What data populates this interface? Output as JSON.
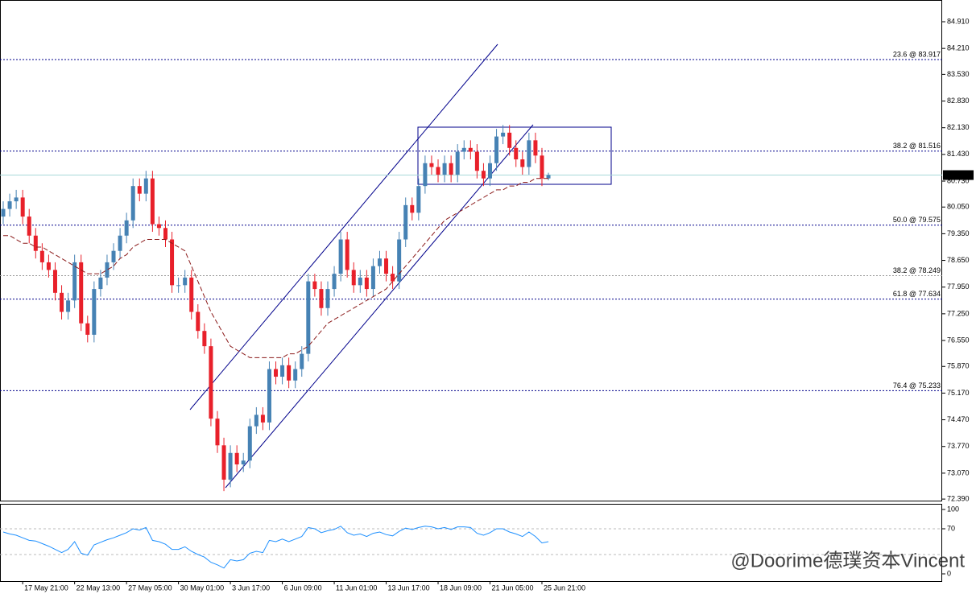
{
  "chart_data": [
    {
      "type": "candlestick",
      "categories": [
        null,
        null,
        null,
        "17 May 21:00",
        null,
        null,
        null,
        null,
        null,
        null,
        null,
        "22 May 13:00",
        null,
        null,
        null,
        null,
        null,
        null,
        null,
        "27 May 05:00",
        null,
        null,
        null,
        null,
        null,
        null,
        null,
        "30 May 01:00",
        null,
        null,
        null,
        null,
        null,
        null,
        null,
        "3 Jun 17:00",
        null,
        null,
        null,
        null,
        null,
        null,
        null,
        "6 Jun 09:00",
        null,
        null,
        null,
        null,
        null,
        null,
        null,
        "11 Jun 01:00",
        null,
        null,
        null,
        null,
        null,
        null,
        null,
        "13 Jun 17:00",
        null,
        null,
        null,
        null,
        null,
        null,
        null,
        "18 Jun 09:00",
        null,
        null,
        null,
        null,
        null,
        null,
        null,
        "21 Jun 05:00",
        null,
        null,
        null,
        null,
        null,
        null,
        null,
        "25 Jun 21:00",
        null
      ],
      "open": [
        79.8,
        80.0,
        80.2,
        80.3,
        79.8,
        79.3,
        78.9,
        78.6,
        78.4,
        77.8,
        77.3,
        77.6,
        78.6,
        77.0,
        76.7,
        77.9,
        78.2,
        78.6,
        78.9,
        79.3,
        79.7,
        80.6,
        80.4,
        80.8,
        79.6,
        79.5,
        79.2,
        78.0,
        78.0,
        78.2,
        77.3,
        76.8,
        76.4,
        74.5,
        73.8,
        72.9,
        73.6,
        73.3,
        73.4,
        74.3,
        74.6,
        74.4,
        75.8,
        75.6,
        75.9,
        75.5,
        75.8,
        76.2,
        78.1,
        77.9,
        77.4,
        77.9,
        78.3,
        79.2,
        78.4,
        78.0,
        78.2,
        77.9,
        78.5,
        78.7,
        78.3,
        78.1,
        79.2,
        80.1,
        79.9,
        80.6,
        81.2,
        81.1,
        80.9,
        81.2,
        80.9,
        81.5,
        81.6,
        81.5,
        81.0,
        80.8,
        81.2,
        81.9,
        82.0,
        81.6,
        81.3,
        81.1,
        81.8,
        81.4,
        80.8
      ],
      "high": [
        80.2,
        80.4,
        80.5,
        80.5,
        80.0,
        79.5,
        79.1,
        78.8,
        78.6,
        78.0,
        77.8,
        78.8,
        78.8,
        77.2,
        78.1,
        78.4,
        78.8,
        79.1,
        79.5,
        79.9,
        80.8,
        80.8,
        81.0,
        81.0,
        79.8,
        79.7,
        79.4,
        78.2,
        78.4,
        78.4,
        77.5,
        77.0,
        76.6,
        74.7,
        74.0,
        73.8,
        73.8,
        73.6,
        74.5,
        74.8,
        74.8,
        76.0,
        76.0,
        76.1,
        76.1,
        76.0,
        76.4,
        78.3,
        78.3,
        78.1,
        78.1,
        78.5,
        79.4,
        79.4,
        78.6,
        78.4,
        78.4,
        78.7,
        78.9,
        78.9,
        78.5,
        79.4,
        80.3,
        80.3,
        80.8,
        81.4,
        81.4,
        81.3,
        81.4,
        81.4,
        81.7,
        81.8,
        81.8,
        81.7,
        81.2,
        81.4,
        82.1,
        82.2,
        82.2,
        81.8,
        81.5,
        82.0,
        82.0,
        81.6,
        80.95
      ],
      "low": [
        79.6,
        79.8,
        80.0,
        79.6,
        79.1,
        78.7,
        78.4,
        78.2,
        77.6,
        77.1,
        77.1,
        77.4,
        76.8,
        76.5,
        76.5,
        77.7,
        78.0,
        78.4,
        78.7,
        79.1,
        79.5,
        80.2,
        80.2,
        79.4,
        79.3,
        79.0,
        77.8,
        77.8,
        77.8,
        77.1,
        76.6,
        76.2,
        74.3,
        73.6,
        72.6,
        72.7,
        73.1,
        73.1,
        73.2,
        74.1,
        74.2,
        74.2,
        75.4,
        75.4,
        75.3,
        75.3,
        75.6,
        76.0,
        77.7,
        77.2,
        77.2,
        77.7,
        78.1,
        78.2,
        77.8,
        77.8,
        77.7,
        77.7,
        78.3,
        78.1,
        77.9,
        77.9,
        79.0,
        79.7,
        79.7,
        80.4,
        80.9,
        80.7,
        80.7,
        80.7,
        80.7,
        81.3,
        81.3,
        80.8,
        80.6,
        80.6,
        81.0,
        81.7,
        81.4,
        81.1,
        80.9,
        80.9,
        81.2,
        80.6,
        80.75
      ],
      "close": [
        80.0,
        80.2,
        80.3,
        79.8,
        79.3,
        78.9,
        78.6,
        78.4,
        77.8,
        77.3,
        77.6,
        78.6,
        77.0,
        76.7,
        77.9,
        78.2,
        78.6,
        78.9,
        79.3,
        79.7,
        80.6,
        80.4,
        80.8,
        79.6,
        79.5,
        79.2,
        78.0,
        78.0,
        78.2,
        77.3,
        76.8,
        76.4,
        74.5,
        73.8,
        72.9,
        73.6,
        73.3,
        73.4,
        74.3,
        74.6,
        74.4,
        75.8,
        75.6,
        75.9,
        75.5,
        75.8,
        76.2,
        78.1,
        77.9,
        77.4,
        77.9,
        78.3,
        79.2,
        78.4,
        78.0,
        78.2,
        77.9,
        78.5,
        78.7,
        78.3,
        78.1,
        79.2,
        80.1,
        79.9,
        80.6,
        81.2,
        81.1,
        80.9,
        81.2,
        80.9,
        81.5,
        81.6,
        81.5,
        81.0,
        80.8,
        81.2,
        81.9,
        82.0,
        81.6,
        81.3,
        81.1,
        81.8,
        81.4,
        80.8,
        80.89
      ],
      "up_color": "#4682b4",
      "down_color": "#e8202a",
      "series": [
        {
          "color": "#8b1a1a",
          "values": [
            79.3,
            79.3,
            79.2,
            79.1,
            79.1,
            79.0,
            79.0,
            78.9,
            78.8,
            78.7,
            78.6,
            78.5,
            78.4,
            78.3,
            78.3,
            78.3,
            78.4,
            78.5,
            78.7,
            78.8,
            79.0,
            79.1,
            79.2,
            79.2,
            79.2,
            79.2,
            79.1,
            79.0,
            78.9,
            78.5,
            78.1,
            77.7,
            77.3,
            77.0,
            76.7,
            76.4,
            76.3,
            76.2,
            76.1,
            76.1,
            76.1,
            76.1,
            76.1,
            76.1,
            76.2,
            76.2,
            76.3,
            76.4,
            76.6,
            76.8,
            77.0,
            77.1,
            77.2,
            77.3,
            77.4,
            77.5,
            77.6,
            77.7,
            77.8,
            77.9,
            78.1,
            78.3,
            78.5,
            78.7,
            78.9,
            79.1,
            79.3,
            79.5,
            79.7,
            79.8,
            79.9,
            80.0,
            80.1,
            80.2,
            80.3,
            80.4,
            80.5,
            80.5,
            80.6,
            80.6,
            80.7,
            80.7,
            80.8,
            80.8,
            80.8
          ]
        }
      ],
      "ylim": [
        72.35,
        85.48
      ],
      "yticks": [
        {
          "value": 72.39,
          "label": "72.390"
        },
        {
          "value": 73.07,
          "label": "73.070"
        },
        {
          "value": 73.77,
          "label": "73.770"
        },
        {
          "value": 74.47,
          "label": "74.470"
        },
        {
          "value": 75.17,
          "label": "75.170"
        },
        {
          "value": 75.87,
          "label": "75.870"
        },
        {
          "value": 76.55,
          "label": "76.550"
        },
        {
          "value": 77.25,
          "label": "77.250"
        },
        {
          "value": 77.95,
          "label": "77.950"
        },
        {
          "value": 78.65,
          "label": "78.650"
        },
        {
          "value": 79.35,
          "label": "79.350"
        },
        {
          "value": 80.05,
          "label": "80.050"
        },
        {
          "value": 80.73,
          "label": "80.730"
        },
        {
          "value": 81.43,
          "label": "81.430"
        },
        {
          "value": 82.13,
          "label": "82.130"
        },
        {
          "value": 82.83,
          "label": "82.830"
        },
        {
          "value": 83.53,
          "label": "83.530"
        },
        {
          "value": 84.21,
          "label": "84.210"
        },
        {
          "value": 84.91,
          "label": "84.910"
        }
      ],
      "last_price": 80.888,
      "levels": [
        {
          "value": 83.917,
          "label": "23.6 @ 83.917",
          "color": "#00008b"
        },
        {
          "value": 81.516,
          "label": "38.2 @ 81.516",
          "color": "#00008b"
        },
        {
          "value": 79.575,
          "label": "50.0 @ 79.575",
          "color": "#00008b"
        },
        {
          "value": 78.249,
          "label": "38.2 @ 78.249",
          "color": "#999999"
        },
        {
          "value": 77.634,
          "label": "61.8 @ 77.634",
          "color": "#00008b"
        },
        {
          "value": 75.233,
          "label": "76.4 @ 75.233",
          "color": "#00008b"
        }
      ]
    },
    {
      "type": "line",
      "series": [
        {
          "color": "#1e90ff",
          "values": [
            65,
            62,
            60,
            56,
            52,
            51,
            47,
            43,
            38,
            33,
            38,
            50,
            32,
            29,
            45,
            49,
            53,
            56,
            60,
            64,
            70,
            68,
            72,
            52,
            50,
            46,
            38,
            38,
            42,
            35,
            30,
            26,
            18,
            14,
            9,
            22,
            20,
            22,
            32,
            35,
            33,
            52,
            50,
            54,
            50,
            54,
            58,
            72,
            70,
            64,
            67,
            69,
            74,
            64,
            60,
            62,
            58,
            63,
            65,
            61,
            59,
            66,
            71,
            69,
            72,
            74,
            73,
            70,
            72,
            69,
            73,
            73,
            72,
            63,
            60,
            64,
            70,
            70,
            65,
            62,
            58,
            65,
            58,
            48,
            50
          ]
        }
      ],
      "ylim": [
        0,
        100
      ],
      "yticks": [
        100,
        70,
        0
      ],
      "levels": [
        70,
        30
      ],
      "watermark": "@Doorime德璞资本Vincent"
    }
  ]
}
